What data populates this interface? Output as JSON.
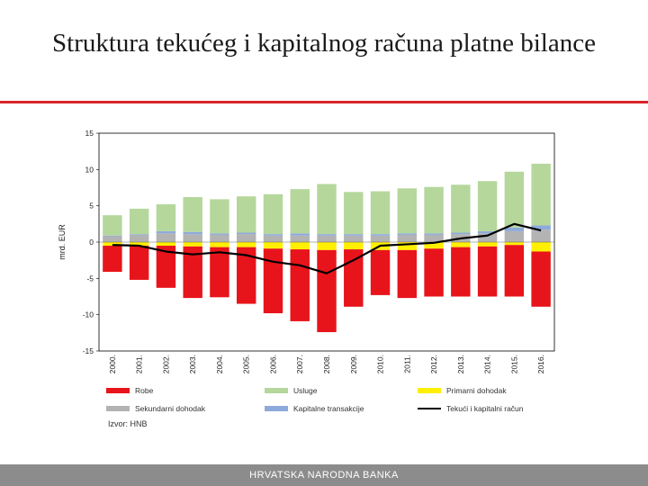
{
  "slide": {
    "title": "Struktura tekućeg i kapitalnog računa platne bilance",
    "source": "Izvor: HNB",
    "footer": "HRVATSKA NARODNA BANKA"
  },
  "colors": {
    "robe": "#e8141b",
    "usluge": "#b5d79c",
    "primarni": "#ffef00",
    "sekundarni": "#b3b3b3",
    "kapitalne": "#8eaadb",
    "line": "#000000",
    "accent": "#d9262b"
  },
  "chart_data": {
    "type": "bar",
    "ylabel": "mrd. EUR",
    "ylim": [
      -15,
      15
    ],
    "yticks": [
      15,
      10,
      5,
      0,
      -5,
      -10,
      -15
    ],
    "ytick_labels": [
      "15",
      "10",
      "5",
      "0",
      "-5",
      "-10",
      "-15"
    ],
    "grid": false,
    "legend_position": "bottom",
    "categories": [
      "2000.",
      "2001.",
      "2002.",
      "2003.",
      "2004.",
      "2005.",
      "2006.",
      "2007.",
      "2008.",
      "2009.",
      "2010.",
      "2011.",
      "2012.",
      "2013.",
      "2014.",
      "2015.",
      "2016."
    ],
    "series": [
      {
        "name": "Robe",
        "type": "bar",
        "values": [
          -3.6,
          -4.7,
          -5.8,
          -7.1,
          -6.9,
          -7.8,
          -8.9,
          -9.9,
          -11.3,
          -7.9,
          -6.2,
          -6.6,
          -6.6,
          -6.8,
          -6.9,
          -7.1,
          -7.6
        ]
      },
      {
        "name": "Usluge",
        "type": "bar",
        "values": [
          2.8,
          3.5,
          3.7,
          4.8,
          4.7,
          5.0,
          5.5,
          6.1,
          6.9,
          5.8,
          5.9,
          6.2,
          6.4,
          6.6,
          6.9,
          7.7,
          8.5
        ]
      },
      {
        "name": "Primarni dohodak",
        "type": "bar",
        "values": [
          -0.5,
          -0.5,
          -0.5,
          -0.6,
          -0.7,
          -0.7,
          -0.9,
          -1.0,
          -1.1,
          -1.0,
          -1.1,
          -1.1,
          -0.9,
          -0.7,
          -0.6,
          -0.4,
          -1.3
        ]
      },
      {
        "name": "Sekundarni dohodak",
        "type": "bar",
        "values": [
          0.8,
          1.0,
          1.2,
          1.1,
          1.0,
          1.1,
          0.9,
          0.9,
          0.9,
          0.9,
          0.9,
          1.0,
          1.0,
          1.1,
          1.2,
          1.5,
          1.7
        ]
      },
      {
        "name": "Kapitalne transakcije",
        "type": "bar",
        "values": [
          0.1,
          0.1,
          0.3,
          0.3,
          0.2,
          0.2,
          0.2,
          0.3,
          0.2,
          0.2,
          0.2,
          0.2,
          0.2,
          0.2,
          0.3,
          0.5,
          0.6
        ]
      },
      {
        "name": "Tekući i kapitalni račun",
        "type": "line",
        "values": [
          -0.4,
          -0.5,
          -1.3,
          -1.7,
          -1.4,
          -1.8,
          -2.7,
          -3.2,
          -4.3,
          -2.5,
          -0.5,
          -0.3,
          -0.1,
          0.5,
          0.9,
          2.5,
          1.6
        ]
      }
    ]
  }
}
